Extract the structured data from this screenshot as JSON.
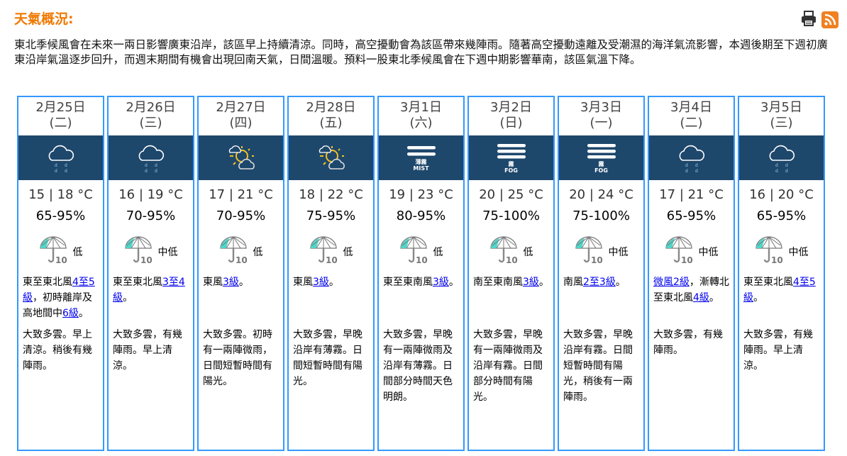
{
  "header": {
    "title": "天氣概況:",
    "print_icon": "printer-icon",
    "rss_icon": "rss-icon"
  },
  "summary": "東北季候風會在未來一兩日影響廣東沿岸，該區早上持續清涼。同時，高空擾動會為該區帶來幾陣雨。隨著高空擾動遠離及受潮濕的海洋氣流影響，本週後期至下週初廣東沿岸氣溫逐步回升，而週末期間有機會出現回南天氣，日間溫暖。預料一股東北季候風會在下週中期影響華南，該區氣溫下降。",
  "colors": {
    "border": "#3399ff",
    "band": "#1e476c",
    "title": "#f07800"
  },
  "days": [
    {
      "date": "2月25日",
      "weekday": "(二)",
      "icon": "cloud-rain-icon",
      "temp": "15 | 18 °C",
      "rh": "65-95%",
      "psr": "低",
      "wind": [
        {
          "t": "東至東北風"
        },
        {
          "t": "4至5級",
          "link": true
        },
        {
          "t": "，初時離岸及高地間中"
        },
        {
          "t": "6級",
          "link": true
        },
        {
          "t": "。"
        }
      ],
      "desc": "大致多雲。早上清涼。稍後有幾陣雨。"
    },
    {
      "date": "2月26日",
      "weekday": "(三)",
      "icon": "cloud-rain-icon",
      "temp": "16 | 19 °C",
      "rh": "70-95%",
      "psr": "中低",
      "wind": [
        {
          "t": "東至東北風"
        },
        {
          "t": "3至4級",
          "link": true
        },
        {
          "t": "。"
        }
      ],
      "desc": "大致多雲，有幾陣雨。早上清涼。"
    },
    {
      "date": "2月27日",
      "weekday": "(四)",
      "icon": "sun-cloud-icon",
      "temp": "17 | 21 °C",
      "rh": "70-95%",
      "psr": "低",
      "wind": [
        {
          "t": "東風"
        },
        {
          "t": "3級",
          "link": true
        },
        {
          "t": "。"
        }
      ],
      "desc": "大致多雲。初時有一兩陣微雨，日間短暫時間有陽光。"
    },
    {
      "date": "2月28日",
      "weekday": "(五)",
      "icon": "sun-cloud-icon",
      "temp": "18 | 22 °C",
      "rh": "75-95%",
      "psr": "低",
      "wind": [
        {
          "t": "東風"
        },
        {
          "t": "3級",
          "link": true
        },
        {
          "t": "。"
        }
      ],
      "desc": "大致多雲，早晚沿岸有薄霧。日間短暫時間有陽光。"
    },
    {
      "date": "3月1日",
      "weekday": "(六)",
      "icon": "mist-icon",
      "icon_label": "薄霧",
      "icon_label_en": "MIST",
      "temp": "19 | 23 °C",
      "rh": "80-95%",
      "psr": "低",
      "wind": [
        {
          "t": "東至東南風"
        },
        {
          "t": "3級",
          "link": true
        },
        {
          "t": "。"
        }
      ],
      "desc": "大致多雲，早晚有一兩陣微雨及沿岸有薄霧。日間部分時間天色明朗。"
    },
    {
      "date": "3月2日",
      "weekday": "(日)",
      "icon": "fog-icon",
      "icon_label": "霧",
      "icon_label_en": "FOG",
      "temp": "20 | 25 °C",
      "rh": "75-100%",
      "psr": "低",
      "wind": [
        {
          "t": "南至東南風"
        },
        {
          "t": "3級",
          "link": true
        },
        {
          "t": "。"
        }
      ],
      "desc": "大致多雲，早晚有一兩陣微雨及沿岸有霧。日間部分時間有陽光。"
    },
    {
      "date": "3月3日",
      "weekday": "(一)",
      "icon": "fog-icon",
      "icon_label": "霧",
      "icon_label_en": "FOG",
      "temp": "20 | 24 °C",
      "rh": "75-100%",
      "psr": "中低",
      "wind": [
        {
          "t": "南風"
        },
        {
          "t": "2至3級",
          "link": true
        },
        {
          "t": "。"
        }
      ],
      "desc": "大致多雲，早晚沿岸有霧。日間短暫時間有陽光，稍後有一兩陣雨。"
    },
    {
      "date": "3月4日",
      "weekday": "(二)",
      "icon": "cloud-rain-icon",
      "temp": "17 | 21 °C",
      "rh": "65-95%",
      "psr": "中低",
      "wind": [
        {
          "t": "微風2級",
          "link": true
        },
        {
          "t": "，漸轉北至東北風"
        },
        {
          "t": "4級",
          "link": true
        },
        {
          "t": "。"
        }
      ],
      "desc": "大致多雲，有幾陣雨。"
    },
    {
      "date": "3月5日",
      "weekday": "(三)",
      "icon": "cloud-rain-icon",
      "temp": "16 | 20 °C",
      "rh": "65-95%",
      "psr": "中低",
      "wind": [
        {
          "t": "東至東北風"
        },
        {
          "t": "4至5級",
          "link": true
        },
        {
          "t": "。"
        }
      ],
      "desc": "大致多雲，有幾陣雨。早上清涼。"
    }
  ]
}
